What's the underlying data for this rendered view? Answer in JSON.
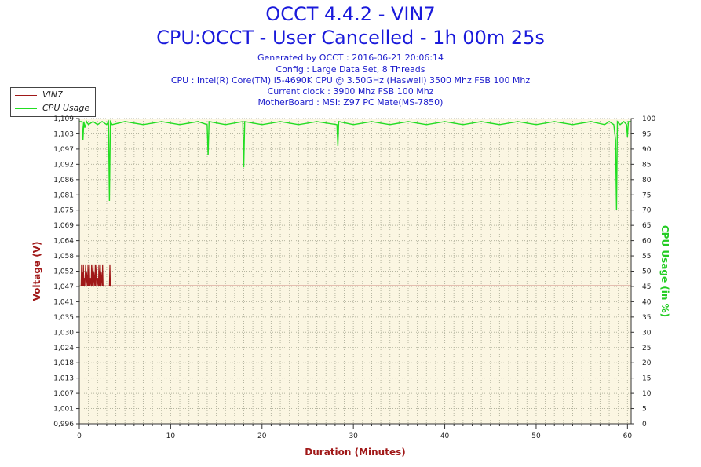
{
  "header": {
    "title": "OCCT 4.4.2 - VIN7",
    "subtitle": "CPU:OCCT - User Cancelled - 1h 00m 25s",
    "info_lines": [
      "Generated by OCCT : 2016-06-21 20:06:14",
      "Config : Large Data Set, 8 Threads",
      "CPU : Intel(R) Core(TM) i5-4690K CPU @ 3.50GHz (Haswell) 3500 Mhz FSB 100 Mhz",
      "Current clock : 3900 Mhz FSB 100 Mhz",
      "MotherBoard : MSI: Z97 PC Mate(MS-7850)"
    ]
  },
  "colors": {
    "vin7": "#a01818",
    "cpu": "#22dd22",
    "plot_bg": "#fbf6e2",
    "grid": "#b5b5a0",
    "title_blue": "#1a1adb",
    "axis_left": "#a01818",
    "axis_right": "#22cc22"
  },
  "chart_data": {
    "type": "line",
    "xlabel": "Duration (Minutes)",
    "ylabel": "Voltage (V)",
    "y2label": "CPU Usage (in %)",
    "xlim": [
      0,
      60.4
    ],
    "ylim": [
      0.996,
      1.109
    ],
    "y2lim": [
      0,
      100
    ],
    "x_ticks": [
      "0",
      "10",
      "20",
      "30",
      "40",
      "50",
      "60"
    ],
    "y_ticks": [
      "0,996",
      "1,001",
      "1,007",
      "1,013",
      "1,018",
      "1,024",
      "1,030",
      "1,035",
      "1,041",
      "1,047",
      "1,052",
      "1,058",
      "1,064",
      "1,069",
      "1,075",
      "1,081",
      "1,086",
      "1,092",
      "1,097",
      "1,103",
      "1,109"
    ],
    "y2_ticks": [
      "0",
      "5",
      "10",
      "15",
      "20",
      "25",
      "30",
      "35",
      "40",
      "45",
      "50",
      "55",
      "60",
      "65",
      "70",
      "75",
      "80",
      "85",
      "90",
      "95",
      "100"
    ],
    "grid": true,
    "legend_position": "top-left outside",
    "series": [
      {
        "name": "VIN7",
        "axis": "left",
        "x": [
          0,
          0.2,
          0.25,
          0.3,
          0.35,
          0.4,
          0.45,
          0.5,
          0.55,
          0.6,
          0.7,
          0.75,
          0.8,
          0.9,
          0.95,
          1.0,
          1.1,
          1.15,
          1.2,
          1.3,
          1.35,
          1.4,
          1.5,
          1.55,
          1.6,
          1.7,
          1.75,
          1.8,
          1.9,
          1.95,
          2.0,
          2.1,
          2.15,
          2.2,
          2.3,
          2.35,
          2.4,
          2.5,
          2.55,
          2.6,
          3.3,
          3.35,
          3.4,
          60.4
        ],
        "values": [
          1.047,
          1.047,
          1.055,
          1.047,
          1.052,
          1.047,
          1.055,
          1.047,
          1.05,
          1.047,
          1.055,
          1.047,
          1.052,
          1.047,
          1.055,
          1.047,
          1.055,
          1.047,
          1.05,
          1.047,
          1.055,
          1.047,
          1.055,
          1.047,
          1.052,
          1.047,
          1.055,
          1.047,
          1.055,
          1.047,
          1.05,
          1.047,
          1.055,
          1.047,
          1.055,
          1.047,
          1.052,
          1.047,
          1.055,
          1.047,
          1.047,
          1.055,
          1.047,
          1.047
        ]
      },
      {
        "name": "CPU Usage",
        "axis": "right",
        "x": [
          0,
          0.3,
          0.4,
          0.5,
          0.6,
          0.8,
          1.0,
          1.5,
          2.0,
          2.5,
          3.0,
          3.2,
          3.3,
          3.4,
          3.6,
          5,
          7,
          9,
          11,
          13,
          14.0,
          14.1,
          14.2,
          16,
          17.9,
          18.0,
          18.1,
          20,
          22,
          24,
          26,
          28.2,
          28.3,
          28.4,
          30,
          32,
          34,
          36,
          38,
          40,
          42,
          44,
          46,
          48,
          50,
          52,
          54,
          56,
          57.5,
          58.0,
          58.5,
          58.7,
          58.8,
          58.9,
          59.2,
          59.6,
          59.9,
          60.0,
          60.1,
          60.4
        ],
        "values": [
          99,
          99,
          93,
          99,
          97,
          99,
          98,
          99,
          98,
          99,
          98,
          99,
          73,
          99,
          98,
          99,
          98,
          99,
          98,
          99,
          98,
          88,
          99,
          98,
          99,
          84,
          99,
          98,
          99,
          98,
          99,
          98,
          91,
          99,
          98,
          99,
          98,
          99,
          98,
          99,
          98,
          99,
          98,
          99,
          98,
          99,
          98,
          99,
          98,
          99,
          98,
          93,
          70,
          99,
          98,
          99,
          98,
          94,
          99,
          99
        ]
      }
    ]
  }
}
